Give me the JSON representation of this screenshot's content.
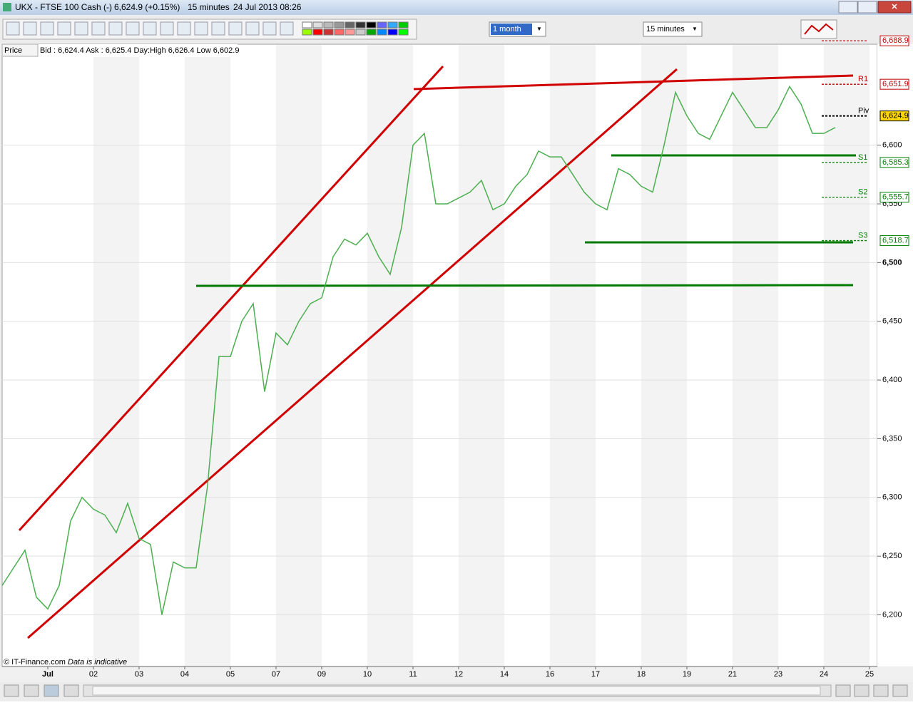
{
  "window": {
    "symbol": "UKX - FTSE 100 Cash (-)",
    "price": "6,624.9 (+0.15%)",
    "interval": "15 minutes",
    "datetime": "24 Jul 2013 08:26"
  },
  "toolbar": {
    "period": "1 month",
    "interval": "15 minutes"
  },
  "chart_data": {
    "type": "line",
    "header": {
      "label": "Price",
      "quote": "Bid : 6,624.4 Ask : 6,625.4 Day:High 6,626.4 Low 6,602.9"
    },
    "footer": {
      "source": "© IT-Finance.com",
      "note": "Data is indicative"
    },
    "categories": [
      null,
      null,
      null,
      null,
      "Jul",
      null,
      null,
      null,
      "02",
      null,
      null,
      null,
      "03",
      null,
      null,
      null,
      "04",
      null,
      null,
      null,
      "05",
      null,
      null,
      null,
      "07",
      null,
      null,
      null,
      "09",
      null,
      null,
      null,
      "10",
      null,
      null,
      null,
      "11",
      null,
      null,
      null,
      "12",
      null,
      null,
      null,
      "14",
      null,
      null,
      null,
      "16",
      null,
      null,
      null,
      "17",
      null,
      null,
      null,
      "18",
      null,
      null,
      null,
      "19",
      null,
      null,
      null,
      "21",
      null,
      null,
      null,
      "23",
      null,
      null,
      null,
      "24",
      null,
      null,
      null,
      "25"
    ],
    "series": [
      {
        "name": "UKX",
        "color": "#4caf50",
        "values": [
          6225,
          6240,
          6255,
          6215,
          6205,
          6225,
          6280,
          6300,
          6290,
          6285,
          6270,
          6295,
          6265,
          6260,
          6200,
          6245,
          6240,
          6240,
          6310,
          6420,
          6420,
          6450,
          6465,
          6390,
          6440,
          6430,
          6450,
          6465,
          6470,
          6505,
          6520,
          6515,
          6525,
          6505,
          6490,
          6530,
          6600,
          6610,
          6550,
          6550,
          6555,
          6560,
          6570,
          6545,
          6550,
          6565,
          6575,
          6595,
          6590,
          6590,
          6575,
          6560,
          6550,
          6545,
          6580,
          6575,
          6565,
          6560,
          6600,
          6645,
          6625,
          6610,
          6605,
          6625,
          6645,
          6630,
          6615,
          6615,
          6630,
          6650,
          6635,
          6610,
          6610,
          6615,
          null,
          null,
          null
        ]
      }
    ],
    "ylim": [
      6156,
      6686
    ],
    "yticks": [
      {
        "value": 6200,
        "label": "6,200"
      },
      {
        "value": 6250,
        "label": "6,250"
      },
      {
        "value": 6300,
        "label": "6,300"
      },
      {
        "value": 6350,
        "label": "6,350"
      },
      {
        "value": 6400,
        "label": "6,400"
      },
      {
        "value": 6450,
        "label": "6,450"
      },
      {
        "value": 6500,
        "label": "6,500"
      },
      {
        "value": 6550,
        "label": "6,550"
      },
      {
        "value": 6600,
        "label": "6,600"
      }
    ],
    "grid": true,
    "levels": [
      {
        "name": null,
        "value": 6688.9,
        "label": "6,688.9",
        "color": "#c00000"
      },
      {
        "name": "R1",
        "value": 6651.9,
        "label": "6,651.9",
        "color": "#c00000"
      },
      {
        "name": "Piv",
        "value": 6624.9,
        "label": "6,624.9",
        "color": "#000000"
      },
      {
        "name": "S1",
        "value": 6585.3,
        "label": "6,585.3",
        "color": "#008000"
      },
      {
        "name": "S2",
        "value": 6555.7,
        "label": "6,555.7",
        "color": "#008000"
      },
      {
        "name": "S3",
        "value": 6518.7,
        "label": "6,518.7",
        "color": "#008000"
      }
    ]
  }
}
